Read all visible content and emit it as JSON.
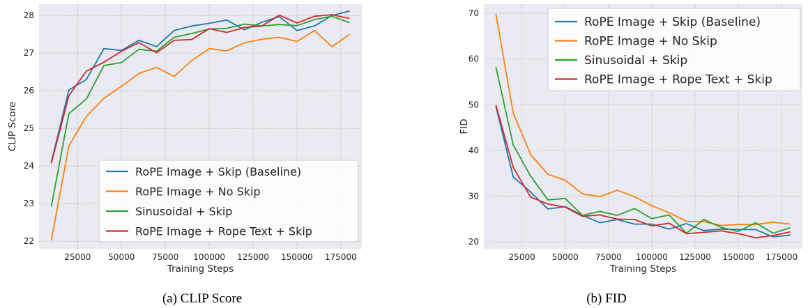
{
  "colors": {
    "baseline": "#1f77b4",
    "noskip": "#ff7f0e",
    "sinusoidal": "#2ca02c",
    "ropetext": "#d62728"
  },
  "captions": {
    "a": "(a) CLIP Score",
    "b": "(b) FID"
  },
  "chart_data": [
    {
      "type": "line",
      "xlabel": "Training Steps",
      "ylabel": "CLIP Score",
      "xlim": [
        3000,
        187000
      ],
      "ylim": [
        21.8,
        28.3
      ],
      "xticks": [
        25000,
        50000,
        75000,
        100000,
        125000,
        150000,
        175000
      ],
      "yticks": [
        22,
        23,
        24,
        25,
        26,
        27,
        28
      ],
      "grid": true,
      "legend_position": "lower-right",
      "x": [
        10000,
        20000,
        30000,
        40000,
        50000,
        60000,
        70000,
        80000,
        90000,
        100000,
        110000,
        120000,
        130000,
        140000,
        150000,
        160000,
        170000,
        180000
      ],
      "series": [
        {
          "name": "RoPE Image + Skip (Baseline)",
          "color_key": "baseline",
          "values": [
            24.1,
            26.02,
            26.3,
            27.12,
            27.07,
            27.34,
            27.17,
            27.6,
            27.72,
            27.79,
            27.88,
            27.62,
            27.82,
            27.97,
            27.6,
            27.72,
            28.0,
            28.12
          ]
        },
        {
          "name": "RoPE Image + No Skip",
          "color_key": "noskip",
          "values": [
            22.02,
            24.53,
            25.32,
            25.8,
            26.12,
            26.46,
            26.62,
            26.38,
            26.8,
            27.12,
            27.06,
            27.27,
            27.37,
            27.42,
            27.31,
            27.6,
            27.17,
            27.5
          ]
        },
        {
          "name": "Sinusoidal + Skip",
          "color_key": "sinusoidal",
          "values": [
            22.92,
            25.39,
            25.78,
            26.67,
            26.75,
            27.1,
            27.05,
            27.42,
            27.52,
            27.64,
            27.66,
            27.77,
            27.72,
            27.76,
            27.73,
            27.89,
            27.98,
            27.81
          ]
        },
        {
          "name": "RoPE Image + Rope Text + Skip",
          "color_key": "ropetext",
          "values": [
            24.07,
            25.87,
            26.52,
            26.76,
            27.05,
            27.28,
            27.01,
            27.34,
            27.36,
            27.65,
            27.55,
            27.68,
            27.72,
            28.01,
            27.8,
            27.98,
            28.02,
            27.92
          ]
        }
      ]
    },
    {
      "type": "line",
      "xlabel": "Training Steps",
      "ylabel": "FID",
      "xlim": [
        3000,
        187000
      ],
      "ylim": [
        18.5,
        72.0
      ],
      "xticks": [
        25000,
        50000,
        75000,
        100000,
        125000,
        150000,
        175000
      ],
      "yticks": [
        20,
        30,
        40,
        50,
        60,
        70
      ],
      "grid": true,
      "legend_position": "top-right",
      "x": [
        10000,
        20000,
        30000,
        40000,
        50000,
        60000,
        70000,
        80000,
        90000,
        100000,
        110000,
        120000,
        130000,
        140000,
        150000,
        160000,
        170000,
        180000
      ],
      "series": [
        {
          "name": "RoPE Image + Skip (Baseline)",
          "color_key": "baseline",
          "values": [
            49.6,
            34.2,
            30.9,
            27.2,
            27.7,
            25.8,
            24.2,
            24.9,
            23.9,
            23.9,
            22.8,
            24.0,
            22.5,
            22.8,
            22.7,
            22.7,
            21.1,
            21.5
          ]
        },
        {
          "name": "RoPE Image + No Skip",
          "color_key": "noskip",
          "values": [
            69.8,
            48.2,
            39.1,
            34.8,
            33.5,
            30.5,
            29.9,
            31.3,
            29.9,
            27.9,
            26.4,
            24.5,
            24.4,
            23.6,
            23.8,
            23.8,
            24.3,
            23.9
          ]
        },
        {
          "name": "Sinusoidal + Skip",
          "color_key": "sinusoidal",
          "values": [
            58.2,
            41.2,
            34.4,
            29.2,
            29.5,
            25.8,
            26.7,
            25.8,
            27.3,
            25.1,
            25.9,
            21.9,
            24.9,
            23.2,
            22.3,
            24.2,
            21.9,
            23.1
          ]
        },
        {
          "name": "RoPE Image + Rope Text + Skip",
          "color_key": "ropetext",
          "values": [
            49.9,
            36.3,
            29.8,
            28.3,
            27.6,
            25.6,
            25.9,
            25.0,
            24.9,
            23.5,
            24.1,
            21.8,
            22.1,
            22.4,
            21.8,
            20.9,
            21.4,
            22.2
          ]
        }
      ]
    }
  ]
}
